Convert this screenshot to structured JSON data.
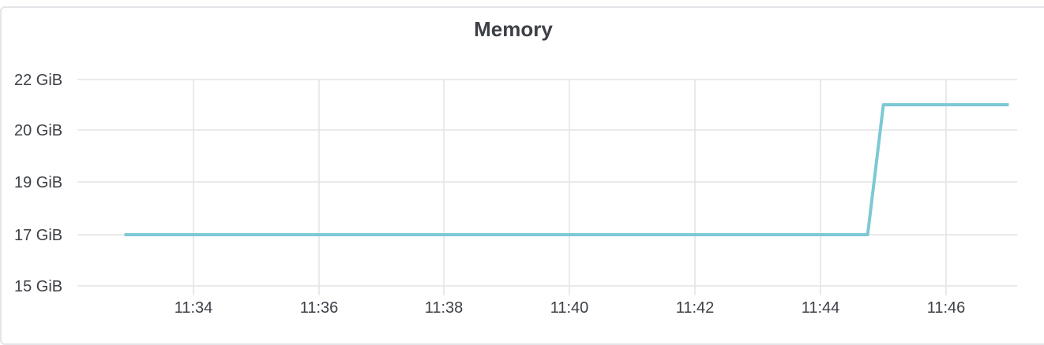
{
  "panel": {
    "title": "Memory"
  },
  "colors": {
    "series": "#7ec8d5",
    "grid": "#e4e4e4",
    "text": "#3d4046"
  },
  "chart_data": {
    "type": "line",
    "title": "Memory",
    "xlabel": "",
    "ylabel": "",
    "x_ticks": [
      "11:34",
      "11:36",
      "11:38",
      "11:40",
      "11:42",
      "11:44",
      "11:46"
    ],
    "y_ticks": [
      "15 GiB",
      "17 GiB",
      "19 GiB",
      "20 GiB",
      "22 GiB"
    ],
    "grid": true,
    "legend": "none",
    "series": [
      {
        "x": [
          "11:32:54",
          "11:44:45",
          "11:45:00",
          "11:47:00"
        ],
        "y": [
          "17 GiB",
          "17 GiB",
          "21 GiB",
          "21 GiB"
        ]
      }
    ]
  }
}
